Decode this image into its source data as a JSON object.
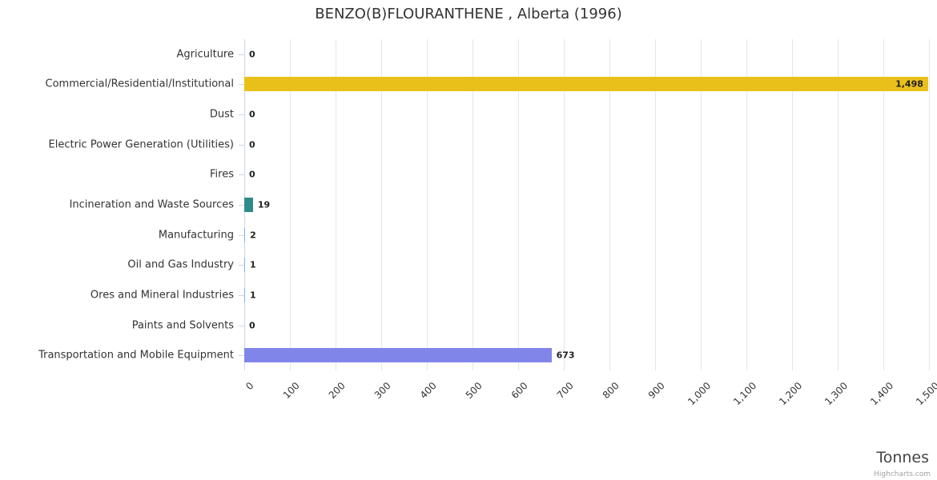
{
  "credit": "Highcharts.com",
  "chart_data": {
    "type": "bar",
    "orientation": "horizontal",
    "title": "BENZO(B)FLOURANTHENE , Alberta (1996)",
    "xlabel": "Tonnes",
    "categories": [
      "Agriculture",
      "Commercial/Residential/Institutional",
      "Dust",
      "Electric Power Generation (Utilities)",
      "Fires",
      "Incineration and Waste Sources",
      "Manufacturing",
      "Oil and Gas Industry",
      "Ores and Mineral Industries",
      "Paints and Solvents",
      "Transportation and Mobile Equipment"
    ],
    "values": [
      0,
      1498,
      0,
      0,
      0,
      19,
      2,
      1,
      1,
      0,
      673
    ],
    "value_labels": [
      "0",
      "1,498",
      "0",
      "0",
      "0",
      "19",
      "2",
      "1",
      "1",
      "0",
      "673"
    ],
    "colors": [
      "#7cb5ec",
      "#e8c019",
      "#7cb5ec",
      "#7cb5ec",
      "#7cb5ec",
      "#2d8c8b",
      "#7cb5ec",
      "#7cb5ec",
      "#7cb5ec",
      "#7cb5ec",
      "#8085e9"
    ],
    "xlim": [
      0,
      1500
    ],
    "x_ticks": [
      0,
      100,
      200,
      300,
      400,
      500,
      600,
      700,
      800,
      900,
      1000,
      1100,
      1200,
      1300,
      1400,
      1500
    ],
    "x_tick_labels": [
      "0",
      "100",
      "200",
      "300",
      "400",
      "500",
      "600",
      "700",
      "800",
      "900",
      "1,000",
      "1,100",
      "1,200",
      "1,300",
      "1,400",
      "1,500"
    ],
    "grid": true,
    "legend": "none"
  },
  "style_colors": {
    "grid": "#e6e6e6",
    "axis": "#ccd6eb",
    "title_text": "#333333",
    "label_text": "#333333",
    "value_text": "#222222",
    "axis_title_text": "#444444",
    "credit_text": "#a0a0a0"
  }
}
